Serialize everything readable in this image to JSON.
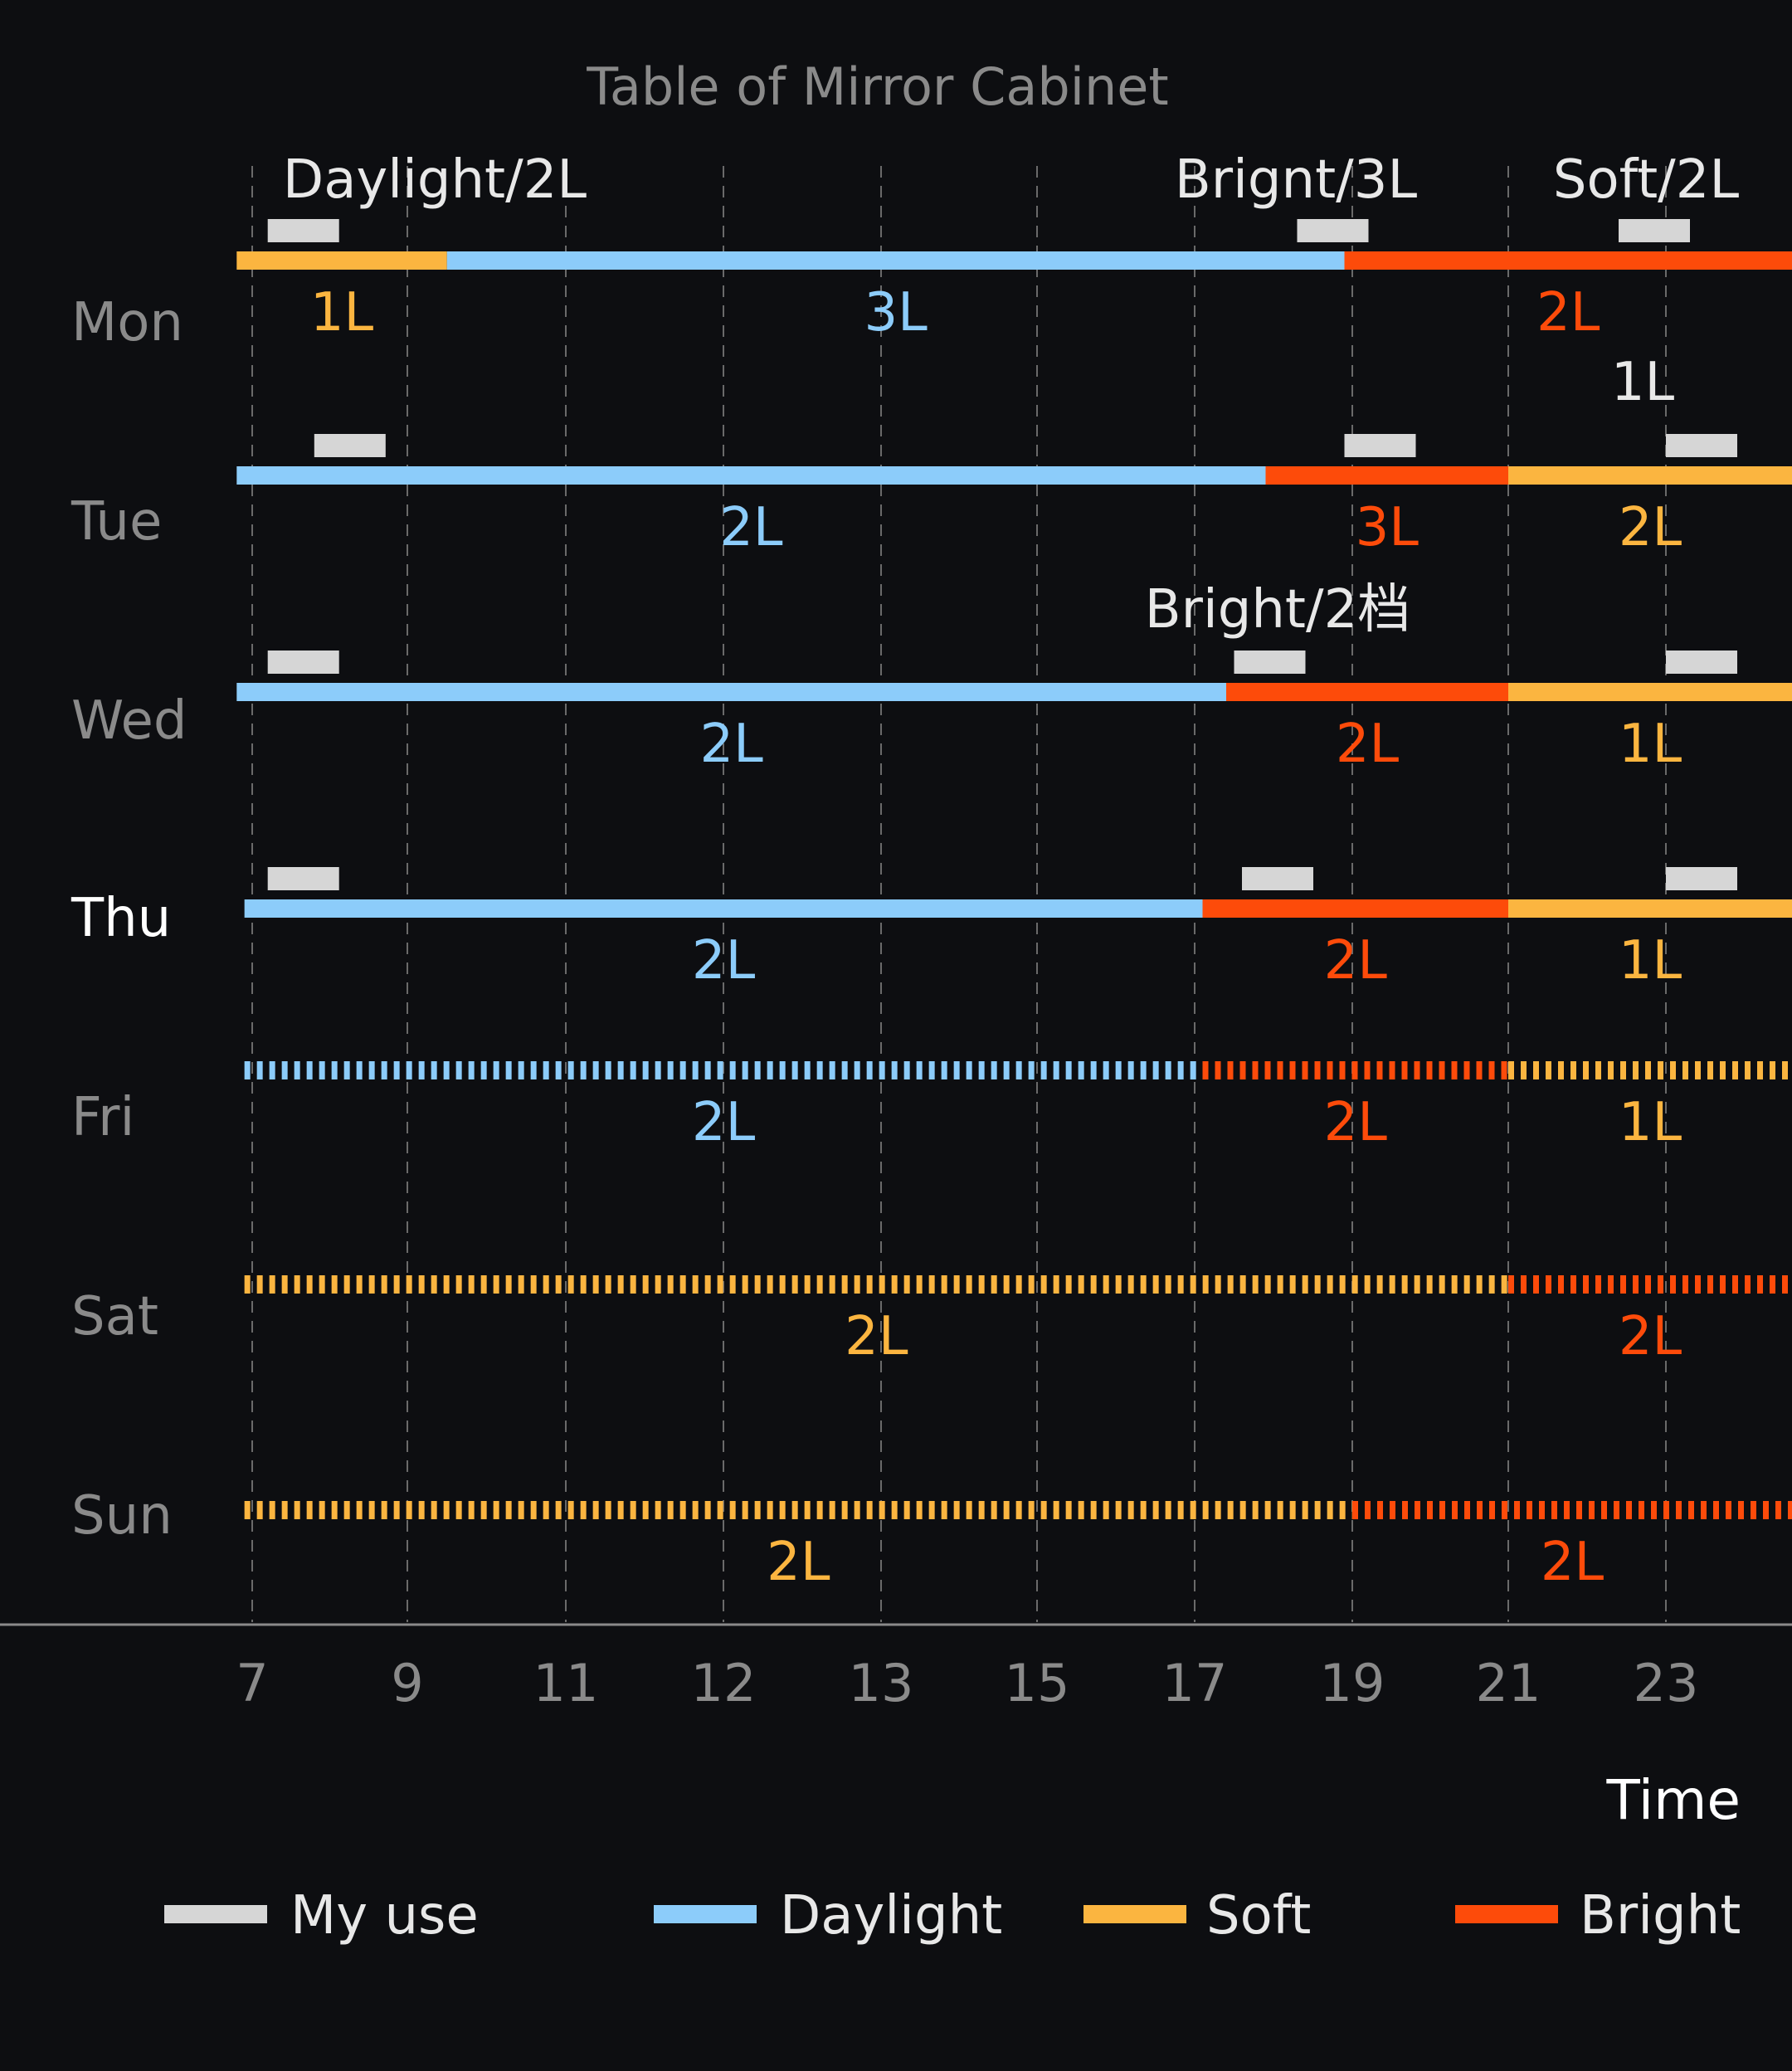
{
  "chart_data": {
    "type": "timeline",
    "title": "Table of Mirror Cabinet",
    "xlabel": "Time",
    "x_ticks": [
      "7",
      "9",
      "11",
      "12",
      "13",
      "15",
      "17",
      "19",
      "21",
      "23"
    ],
    "y_categories": [
      "Mon",
      "Tue",
      "Wed",
      "Thu",
      "Fri",
      "Sat",
      "Sun"
    ],
    "highlighted_day": "Thu",
    "grid": "vertical dashed",
    "legend": [
      {
        "key": "myuse",
        "label": "My use",
        "color": "#d6d6d6"
      },
      {
        "key": "daylight",
        "label": "Daylight",
        "color": "#8cccfa"
      },
      {
        "key": "soft",
        "label": "Soft",
        "color": "#fbb540"
      },
      {
        "key": "bright",
        "label": "Bright",
        "color": "#fd4b0a"
      }
    ],
    "legend_position": "bottom",
    "rows": [
      {
        "day": "Mon",
        "style": "solid",
        "segments": [
          {
            "mode": "soft",
            "level": "1L",
            "start": 6.8,
            "end": 9.5
          },
          {
            "mode": "daylight",
            "level": "3L",
            "start": 9.5,
            "end": 18.9
          },
          {
            "mode": "bright",
            "level": "2L",
            "start": 18.9,
            "end": 24.6
          }
        ],
        "my_use": [
          7.2,
          18.3,
          22.4
        ],
        "annotations": [
          "Daylight/2L",
          "Brignt/3L",
          "Soft/2L"
        ]
      },
      {
        "day": "Tue",
        "style": "solid",
        "extra_label": "1L",
        "segments": [
          {
            "mode": "daylight",
            "level": "2L",
            "start": 6.8,
            "end": 17.9
          },
          {
            "mode": "bright",
            "level": "3L",
            "start": 17.9,
            "end": 21
          },
          {
            "mode": "soft",
            "level": "2L",
            "start": 21,
            "end": 24.6
          }
        ],
        "my_use": [
          7.8,
          18.9,
          23
        ]
      },
      {
        "day": "Wed",
        "style": "solid",
        "segments": [
          {
            "mode": "daylight",
            "level": "2L",
            "start": 6.8,
            "end": 17.4
          },
          {
            "mode": "bright",
            "level": "2L",
            "start": 17.4,
            "end": 21
          },
          {
            "mode": "soft",
            "level": "1L",
            "start": 21,
            "end": 24.6
          }
        ],
        "my_use": [
          7.2,
          17.5,
          23
        ],
        "annotations": [
          "Bright/2档"
        ]
      },
      {
        "day": "Thu",
        "style": "solid",
        "segments": [
          {
            "mode": "daylight",
            "level": "2L",
            "start": 6.9,
            "end": 17.1
          },
          {
            "mode": "bright",
            "level": "2L",
            "start": 17.1,
            "end": 21
          },
          {
            "mode": "soft",
            "level": "1L",
            "start": 21,
            "end": 24.6
          }
        ],
        "my_use": [
          7.2,
          17.6,
          23
        ]
      },
      {
        "day": "Fri",
        "style": "dotted",
        "segments": [
          {
            "mode": "daylight",
            "level": "2L",
            "start": 6.9,
            "end": 17.1
          },
          {
            "mode": "bright",
            "level": "2L",
            "start": 17.1,
            "end": 21
          },
          {
            "mode": "soft",
            "level": "1L",
            "start": 21,
            "end": 24.6
          }
        ],
        "my_use": []
      },
      {
        "day": "Sat",
        "style": "dotted",
        "segments": [
          {
            "mode": "soft",
            "level": "2L",
            "start": 6.9,
            "end": 21
          },
          {
            "mode": "bright",
            "level": "2L",
            "start": 21,
            "end": 24.6
          }
        ],
        "my_use": []
      },
      {
        "day": "Sun",
        "style": "dotted",
        "segments": [
          {
            "mode": "soft",
            "level": "2L",
            "start": 6.9,
            "end": 19
          },
          {
            "mode": "bright",
            "level": "2L",
            "start": 19,
            "end": 24.6
          }
        ],
        "my_use": []
      }
    ]
  }
}
